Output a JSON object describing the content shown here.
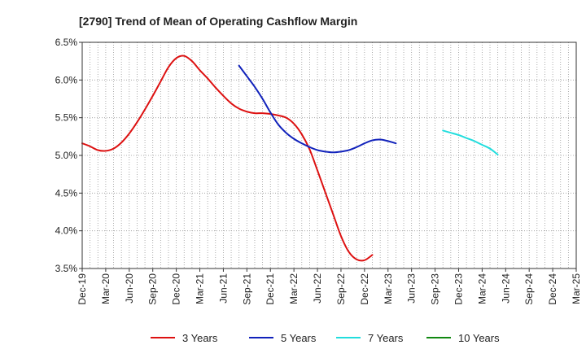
{
  "chart_data": {
    "type": "line",
    "title": "[2790]  Trend of Mean of Operating Cashflow Margin",
    "xlabel": "",
    "ylabel": "",
    "grid": true,
    "legend_position": "bottom",
    "ylim": [
      3.5,
      6.5
    ],
    "y_ticks": [
      3.5,
      4.0,
      4.5,
      5.0,
      5.5,
      6.0,
      6.5
    ],
    "y_tick_labels": [
      "3.5%",
      "4.0%",
      "4.5%",
      "5.0%",
      "5.5%",
      "6.0%",
      "6.5%"
    ],
    "x_tick_labels": [
      "Dec-19",
      "Mar-20",
      "Jun-20",
      "Sep-20",
      "Dec-20",
      "Mar-21",
      "Jun-21",
      "Sep-21",
      "Dec-21",
      "Mar-22",
      "Jun-22",
      "Sep-22",
      "Dec-22",
      "Mar-23",
      "Jun-23",
      "Sep-23",
      "Dec-23",
      "Mar-24",
      "Jun-24",
      "Sep-24",
      "Dec-24",
      "Mar-25"
    ],
    "x_tick_index": [
      0,
      3,
      6,
      9,
      12,
      15,
      18,
      21,
      24,
      27,
      30,
      33,
      36,
      39,
      42,
      45,
      48,
      51,
      54,
      57,
      60,
      63
    ],
    "x_range": [
      0,
      63
    ],
    "series": [
      {
        "name": "3 Years",
        "color": "#dd1111",
        "start_index": 0,
        "values": [
          5.16,
          5.12,
          5.07,
          5.06,
          5.09,
          5.17,
          5.29,
          5.44,
          5.61,
          5.79,
          5.98,
          6.17,
          6.29,
          6.32,
          6.25,
          6.13,
          6.02,
          5.9,
          5.79,
          5.69,
          5.62,
          5.58,
          5.56,
          5.56,
          5.55,
          5.53,
          5.5,
          5.42,
          5.28,
          5.08,
          4.8,
          4.51,
          4.22,
          3.93,
          3.72,
          3.62,
          3.61,
          3.68
        ]
      },
      {
        "name": "5 Years",
        "color": "#1122bb",
        "start_index": 20,
        "values": [
          6.19,
          6.05,
          5.91,
          5.75,
          5.57,
          5.41,
          5.3,
          5.22,
          5.16,
          5.11,
          5.07,
          5.05,
          5.04,
          5.05,
          5.07,
          5.11,
          5.16,
          5.2,
          5.21,
          5.19,
          5.16
        ]
      },
      {
        "name": "7 Years",
        "color": "#22dddd",
        "start_index": 46,
        "values": [
          5.33,
          5.3,
          5.27,
          5.23,
          5.19,
          5.14,
          5.09,
          5.01
        ]
      },
      {
        "name": "10 Years",
        "color": "#118811",
        "start_index": 0,
        "values": []
      }
    ]
  }
}
